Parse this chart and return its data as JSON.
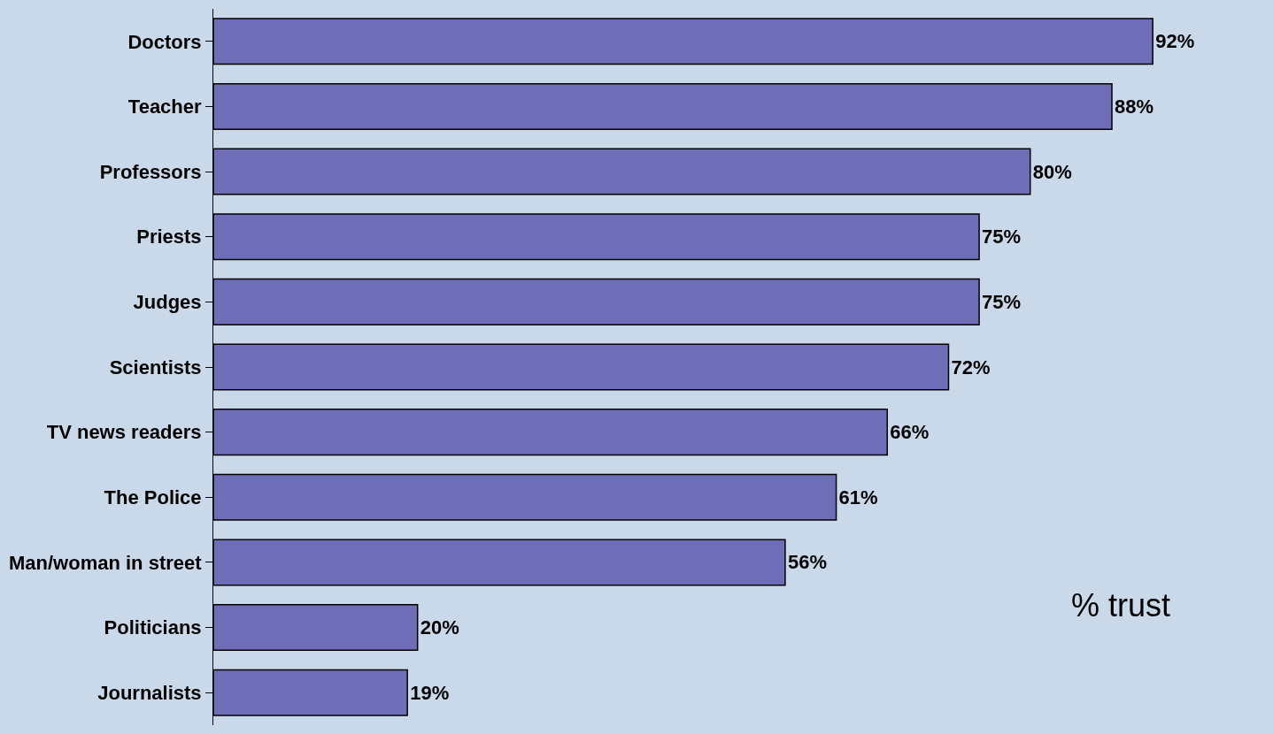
{
  "chart_data": {
    "type": "bar",
    "orientation": "horizontal",
    "categories": [
      "Doctors",
      "Teacher",
      "Professors",
      "Priests",
      "Judges",
      "Scientists",
      "TV news readers",
      "The Police",
      "Man/woman in street",
      "Politicians",
      "Journalists"
    ],
    "values": [
      92,
      88,
      80,
      75,
      75,
      72,
      66,
      61,
      56,
      20,
      19
    ],
    "value_labels": [
      "92%",
      "88%",
      "80%",
      "75%",
      "75%",
      "72%",
      "66%",
      "61%",
      "56%",
      "20%",
      "19%"
    ],
    "color": "#6e6eb8",
    "annotations": [
      "% trust"
    ],
    "grid": false,
    "legend": false
  }
}
